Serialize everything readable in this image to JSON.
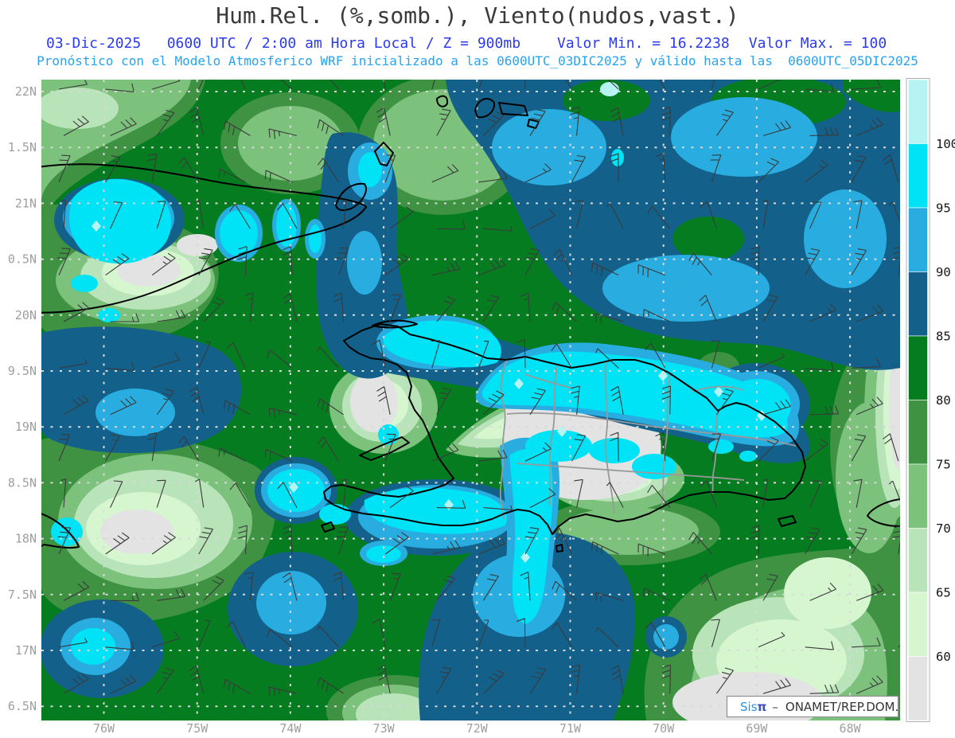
{
  "title": "Hum.Rel. (%,somb.), Viento(nudos,vast.)",
  "subtitle": {
    "datetime": "03-Dic-2025   0600 UTC / 2:00 am Hora Local / Z = 900mb",
    "min": "Valor Min. = 16.2238",
    "max": "Valor Max. = 100",
    "forecast": "Pronóstico con el Modelo Atmosferico WRF inicializado a las 0600UTC_03DIC2025 y válido hasta las  0600UTC_05DIC2025"
  },
  "credit": {
    "brand_prefix": "Sis",
    "brand_symbol": "π",
    "separator": "–",
    "text": "ONAMET/REP.DOM."
  },
  "axes": {
    "x_labels": [
      "76W",
      "75W",
      "74W",
      "73W",
      "72W",
      "71W",
      "70W",
      "69W",
      "68W"
    ],
    "y_labels": [
      "22N",
      "1.5N",
      "21N",
      "0.5N",
      "20N",
      "9.5N",
      "19N",
      "8.5N",
      "18N",
      "7.5N",
      "17N",
      "6.5N"
    ]
  },
  "colorbar": {
    "tick_labels": [
      "100",
      "95",
      "90",
      "85",
      "80",
      "75",
      "70",
      "65",
      "60"
    ],
    "colors_top_to_bottom": [
      "#b6f4f4",
      "#00e2f6",
      "#29ade0",
      "#13618b",
      "#067c20",
      "#3e9242",
      "#7cc17c",
      "#b9e3b9",
      "#d6f6d0",
      "#e3e3e3"
    ]
  },
  "chart_data": {
    "type": "filled_contour_map",
    "title": "Hum.Rel. (%,somb.), Viento(nudos,vast.)",
    "field": "Humedad relativa (%) sombreada",
    "wind": "Viento (nudos) en barbas",
    "level": "900mb",
    "valid_datetime": "03-Dic-2025 0600 UTC / 2:00 am Hora Local",
    "value_min": 16.2238,
    "value_max": 100,
    "model": "WRF",
    "initialized": "0600UTC_03DIC2025",
    "valid_until": "0600UTC_05DIC2025",
    "source": "Sisπ - ONAMET/REP.DOM.",
    "x_ticks": [
      "76W",
      "75W",
      "74W",
      "73W",
      "72W",
      "71W",
      "70W",
      "69W",
      "68W"
    ],
    "y_ticks": [
      "22N",
      "1.5N",
      "21N",
      "0.5N",
      "20N",
      "9.5N",
      "19N",
      "8.5N",
      "18N",
      "7.5N",
      "17N",
      "6.5N"
    ],
    "colorbar_levels": [
      60,
      65,
      70,
      75,
      80,
      85,
      90,
      95,
      100
    ],
    "colorbar_colors_low_to_high": [
      "#e3e3e3",
      "#d6f6d0",
      "#b9e3b9",
      "#7cc17c",
      "#3e9242",
      "#067c20",
      "#13618b",
      "#29ade0",
      "#00e2f6",
      "#b6f4f4"
    ],
    "legend_position": "right",
    "grid": true
  }
}
